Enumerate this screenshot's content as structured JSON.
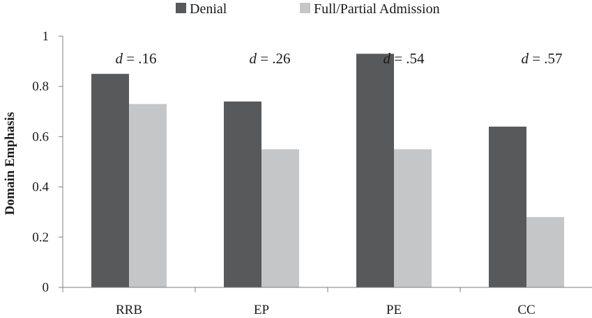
{
  "chart_data": {
    "type": "bar",
    "categories": [
      "RRB",
      "EP",
      "PE",
      "CC"
    ],
    "series": [
      {
        "name": "Denial",
        "values": [
          0.85,
          0.74,
          0.93,
          0.64
        ],
        "color": "#58595b"
      },
      {
        "name": "Full/Partial Admission",
        "values": [
          0.73,
          0.55,
          0.55,
          0.28
        ],
        "color": "#c5c6c8"
      }
    ],
    "annotations": [
      {
        "italic": "d",
        "text": " = .16"
      },
      {
        "italic": "d",
        "text": " = .26"
      },
      {
        "italic": "d",
        "text": " = .54"
      },
      {
        "italic": "d",
        "text": " = .57"
      }
    ],
    "ylabel": "Domain Emphasis",
    "xlabel": "",
    "ylim": [
      0,
      1
    ],
    "yticks": [
      0,
      0.2,
      0.4,
      0.6,
      0.8,
      1
    ],
    "ytick_labels": [
      "0",
      "0.2",
      "0.4",
      "0.6",
      "0.8",
      "1"
    ],
    "grid": false,
    "legend_position": "top"
  }
}
